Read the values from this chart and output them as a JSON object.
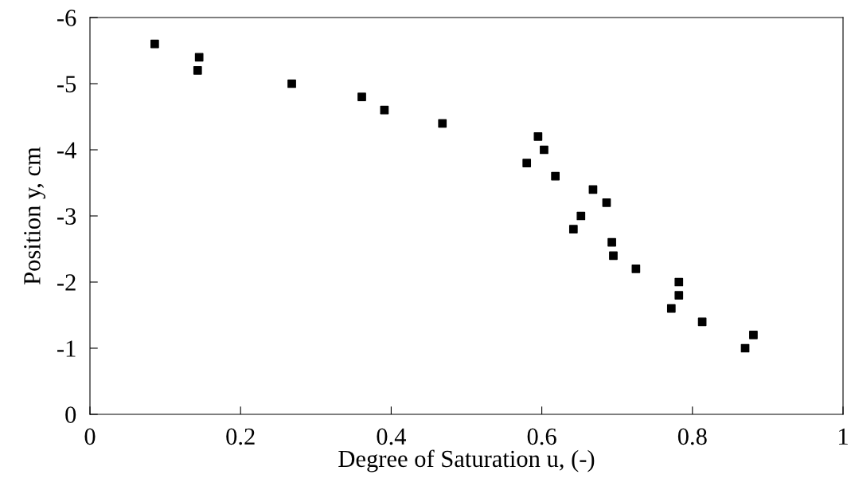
{
  "chart_data": {
    "type": "scatter",
    "xlabel": "Degree of Saturation u, (-)",
    "ylabel": "Position y, cm",
    "x": [
      0.086,
      0.145,
      0.143,
      0.268,
      0.361,
      0.391,
      0.468,
      0.595,
      0.603,
      0.58,
      0.618,
      0.668,
      0.686,
      0.652,
      0.642,
      0.693,
      0.695,
      0.725,
      0.782,
      0.782,
      0.772,
      0.813,
      0.881,
      0.87
    ],
    "series": [
      {
        "color": "#000000",
        "values": [
          -5.6,
          -5.4,
          -5.2,
          -5.0,
          -4.8,
          -4.6,
          -4.4,
          -4.2,
          -4.0,
          -3.8,
          -3.6,
          -3.4,
          -3.2,
          -3.0,
          -2.8,
          -2.6,
          -2.4,
          -2.2,
          -2.0,
          -1.8,
          -1.6,
          -1.4,
          -1.2,
          -1.0
        ]
      }
    ],
    "marker": "square",
    "xlim": [
      0,
      1
    ],
    "xticks": [
      0,
      0.2,
      0.4,
      0.6,
      0.8,
      1
    ],
    "ylim": [
      0,
      -6
    ],
    "yticks": [
      0,
      -1,
      -2,
      -3,
      -4,
      -5,
      -6
    ],
    "grid": false,
    "legend": false
  }
}
